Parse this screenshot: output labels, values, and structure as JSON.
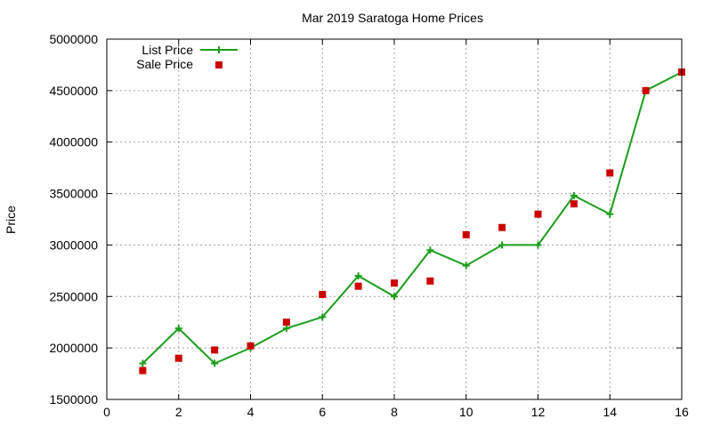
{
  "chart_data": {
    "type": "line",
    "title": "Mar 2019 Saratoga Home Prices",
    "xlabel": "",
    "ylabel": "Price",
    "xlim": [
      0,
      16
    ],
    "ylim": [
      1500000,
      5000000
    ],
    "xticks": [
      0,
      2,
      4,
      6,
      8,
      10,
      12,
      14,
      16
    ],
    "yticks": [
      1500000,
      2000000,
      2500000,
      3000000,
      3500000,
      4000000,
      4500000,
      5000000
    ],
    "grid": true,
    "legend_position": "top-left",
    "series": [
      {
        "name": "List Price",
        "style": "line-with-plus-markers",
        "color": "#1a9e1a",
        "x": [
          1,
          2,
          3,
          4,
          5,
          6,
          7,
          8,
          9,
          10,
          11,
          12,
          13,
          14,
          15,
          16
        ],
        "y": [
          1850000,
          2190000,
          1850000,
          2000000,
          2190000,
          2300000,
          2700000,
          2500000,
          2950000,
          2800000,
          3000000,
          3000000,
          3480000,
          3300000,
          4500000,
          4680000
        ]
      },
      {
        "name": "Sale Price",
        "style": "square-markers",
        "color": "#cc0000",
        "x": [
          1,
          2,
          3,
          4,
          5,
          6,
          7,
          8,
          9,
          10,
          11,
          12,
          13,
          14,
          15,
          16
        ],
        "y": [
          1780000,
          1900000,
          1980000,
          2020000,
          2250000,
          2520000,
          2600000,
          2630000,
          2650000,
          3100000,
          3170000,
          3300000,
          3400000,
          3700000,
          4500000,
          4680000
        ]
      }
    ]
  }
}
